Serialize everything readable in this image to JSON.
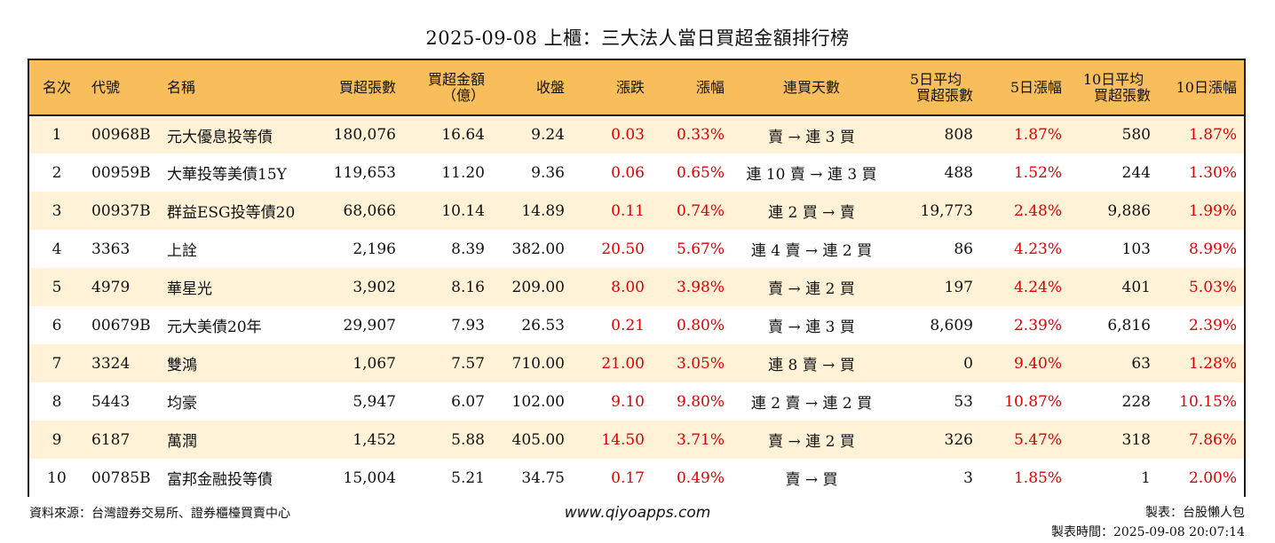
{
  "title": "2025-09-08 上櫃：三大法人當日買超金額排行榜",
  "headers": {
    "rank": "名次",
    "code": "代號",
    "name": "名稱",
    "buy_shares": "買超張數",
    "buy_amount_l1": "買超金額",
    "buy_amount_l2": "（億）",
    "close": "收盤",
    "change": "漲跌",
    "pct": "漲幅",
    "streak": "連買天數",
    "avg5_l1": "5日平均",
    "avg5_l2": "買超張數",
    "pct5": "5日漲幅",
    "avg10_l1": "10日平均",
    "avg10_l2": "買超張數",
    "pct10": "10日漲幅"
  },
  "rows": [
    {
      "rank": "1",
      "code": "00968B",
      "name": "元大優息投等債",
      "buy_shares": "180,076",
      "buy_amount": "16.64",
      "close": "9.24",
      "change": "0.03",
      "pct": "0.33%",
      "streak": "賣 → 連 3 買",
      "avg5": "808",
      "pct5": "1.87%",
      "avg10": "580",
      "pct10": "1.87%"
    },
    {
      "rank": "2",
      "code": "00959B",
      "name": "大華投等美債15Y",
      "buy_shares": "119,653",
      "buy_amount": "11.20",
      "close": "9.36",
      "change": "0.06",
      "pct": "0.65%",
      "streak": "連 10 賣 → 連 3 買",
      "avg5": "488",
      "pct5": "1.52%",
      "avg10": "244",
      "pct10": "1.30%"
    },
    {
      "rank": "3",
      "code": "00937B",
      "name": "群益ESG投等債20",
      "buy_shares": "68,066",
      "buy_amount": "10.14",
      "close": "14.89",
      "change": "0.11",
      "pct": "0.74%",
      "streak": "連 2 買 → 賣",
      "avg5": "19,773",
      "pct5": "2.48%",
      "avg10": "9,886",
      "pct10": "1.99%"
    },
    {
      "rank": "4",
      "code": "3363",
      "name": "上詮",
      "buy_shares": "2,196",
      "buy_amount": "8.39",
      "close": "382.00",
      "change": "20.50",
      "pct": "5.67%",
      "streak": "連 4 賣 → 連 2 買",
      "avg5": "86",
      "pct5": "4.23%",
      "avg10": "103",
      "pct10": "8.99%"
    },
    {
      "rank": "5",
      "code": "4979",
      "name": "華星光",
      "buy_shares": "3,902",
      "buy_amount": "8.16",
      "close": "209.00",
      "change": "8.00",
      "pct": "3.98%",
      "streak": "賣 → 連 2 買",
      "avg5": "197",
      "pct5": "4.24%",
      "avg10": "401",
      "pct10": "5.03%"
    },
    {
      "rank": "6",
      "code": "00679B",
      "name": "元大美債20年",
      "buy_shares": "29,907",
      "buy_amount": "7.93",
      "close": "26.53",
      "change": "0.21",
      "pct": "0.80%",
      "streak": "賣 → 連 3 買",
      "avg5": "8,609",
      "pct5": "2.39%",
      "avg10": "6,816",
      "pct10": "2.39%"
    },
    {
      "rank": "7",
      "code": "3324",
      "name": "雙鴻",
      "buy_shares": "1,067",
      "buy_amount": "7.57",
      "close": "710.00",
      "change": "21.00",
      "pct": "3.05%",
      "streak": "連 8 賣 → 買",
      "avg5": "0",
      "pct5": "9.40%",
      "avg10": "63",
      "pct10": "1.28%"
    },
    {
      "rank": "8",
      "code": "5443",
      "name": "均豪",
      "buy_shares": "5,947",
      "buy_amount": "6.07",
      "close": "102.00",
      "change": "9.10",
      "pct": "9.80%",
      "streak": "連 2 賣 → 連 2 買",
      "avg5": "53",
      "pct5": "10.87%",
      "avg10": "228",
      "pct10": "10.15%"
    },
    {
      "rank": "9",
      "code": "6187",
      "name": "萬潤",
      "buy_shares": "1,452",
      "buy_amount": "5.88",
      "close": "405.00",
      "change": "14.50",
      "pct": "3.71%",
      "streak": "賣 → 連 2 買",
      "avg5": "326",
      "pct5": "5.47%",
      "avg10": "318",
      "pct10": "7.86%"
    },
    {
      "rank": "10",
      "code": "00785B",
      "name": "富邦金融投等債",
      "buy_shares": "15,004",
      "buy_amount": "5.21",
      "close": "34.75",
      "change": "0.17",
      "pct": "0.49%",
      "streak": "賣 → 買",
      "avg5": "3",
      "pct5": "1.85%",
      "avg10": "1",
      "pct10": "2.00%"
    }
  ],
  "footer": {
    "source": "資料來源：台灣證券交易所、證券櫃檯買賣中心",
    "website": "www.qiyoapps.com",
    "maker": "製表：台股懶人包",
    "time": "製表時間：2025-09-08 20:07:14"
  },
  "colors": {
    "header_bg": "#f8be5b",
    "stripe_bg": "#fff2d6",
    "positive": "#e00000"
  }
}
